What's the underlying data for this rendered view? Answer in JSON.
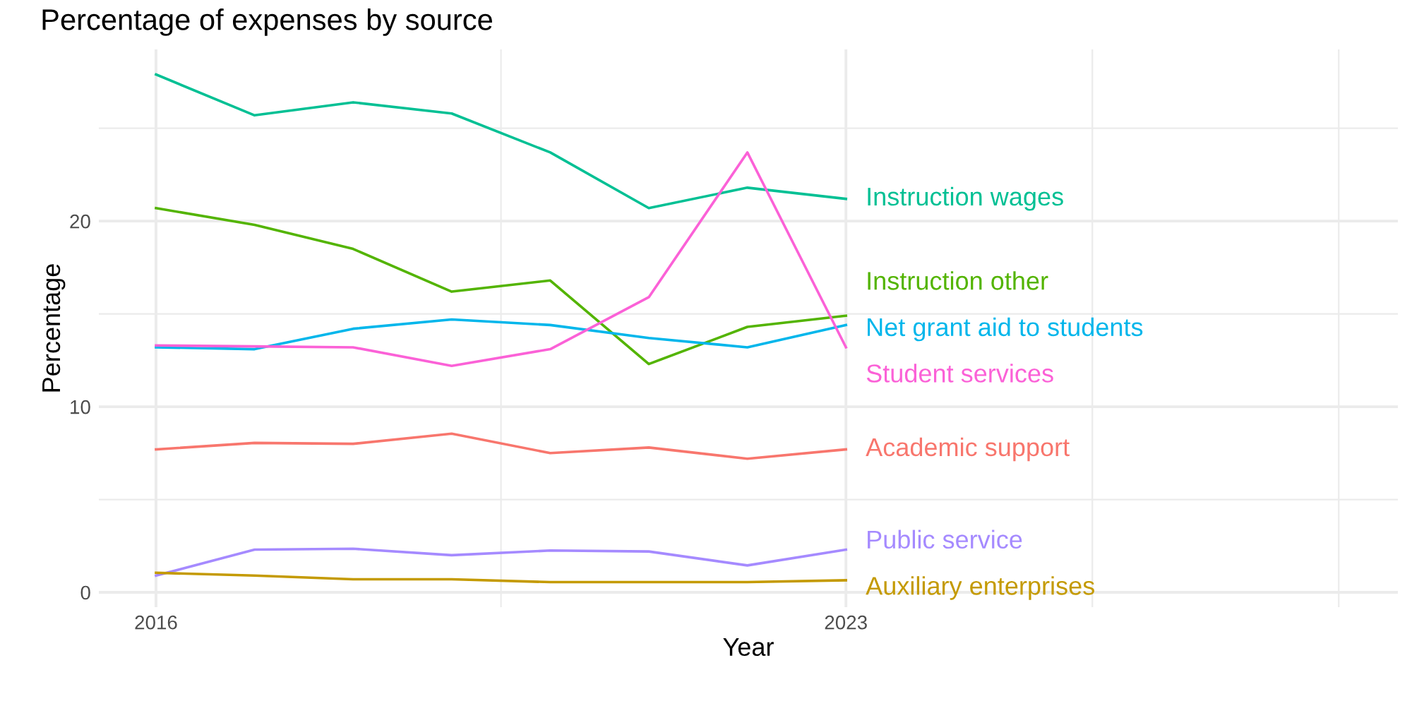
{
  "chart_data": {
    "type": "line",
    "title": "Percentage of expenses by source",
    "xlabel": "Year",
    "ylabel": "Percentage",
    "x": [
      2016,
      2017,
      2018,
      2019,
      2020,
      2021,
      2022,
      2023
    ],
    "series": [
      {
        "name": "Instruction wages",
        "color": "#00c094",
        "values": [
          27.9,
          25.7,
          26.4,
          25.8,
          23.7,
          20.7,
          21.8,
          21.2
        ]
      },
      {
        "name": "Instruction other",
        "color": "#53b400",
        "values": [
          20.7,
          19.8,
          18.5,
          16.2,
          16.8,
          12.3,
          14.3,
          14.9
        ]
      },
      {
        "name": "Net grant aid to students",
        "color": "#00b6eb",
        "values": [
          13.2,
          13.1,
          14.2,
          14.7,
          14.4,
          13.7,
          13.2,
          14.4
        ]
      },
      {
        "name": "Student services",
        "color": "#fb61d7",
        "values": [
          13.3,
          13.25,
          13.2,
          12.2,
          13.1,
          15.9,
          23.7,
          13.2
        ]
      },
      {
        "name": "Academic support",
        "color": "#f8766d",
        "values": [
          7.7,
          8.05,
          8.0,
          8.55,
          7.5,
          7.8,
          7.2,
          7.7
        ]
      },
      {
        "name": "Public service",
        "color": "#a58aff",
        "values": [
          0.9,
          2.3,
          2.35,
          2.0,
          2.25,
          2.2,
          1.45,
          2.3
        ]
      },
      {
        "name": "Auxiliary enterprises",
        "color": "#c49a00",
        "values": [
          1.05,
          0.9,
          0.7,
          0.7,
          0.55,
          0.55,
          0.55,
          0.65
        ]
      }
    ],
    "xlim": [
      2015.42,
      2028.6
    ],
    "xticks": [
      2016,
      {
        "value": 2019.5,
        "label": null
      },
      2023,
      {
        "value": 2025.5,
        "label": null
      },
      {
        "value": 2028,
        "label": null
      }
    ],
    "ylim": [
      -0.8,
      29.25
    ],
    "yticks": [
      0,
      {
        "value": 5,
        "label": null
      },
      10,
      {
        "value": 15,
        "label": null
      },
      20,
      {
        "value": 25,
        "label": null
      }
    ],
    "grid": true,
    "legend": false,
    "line_style": "solid",
    "marker": "none"
  }
}
